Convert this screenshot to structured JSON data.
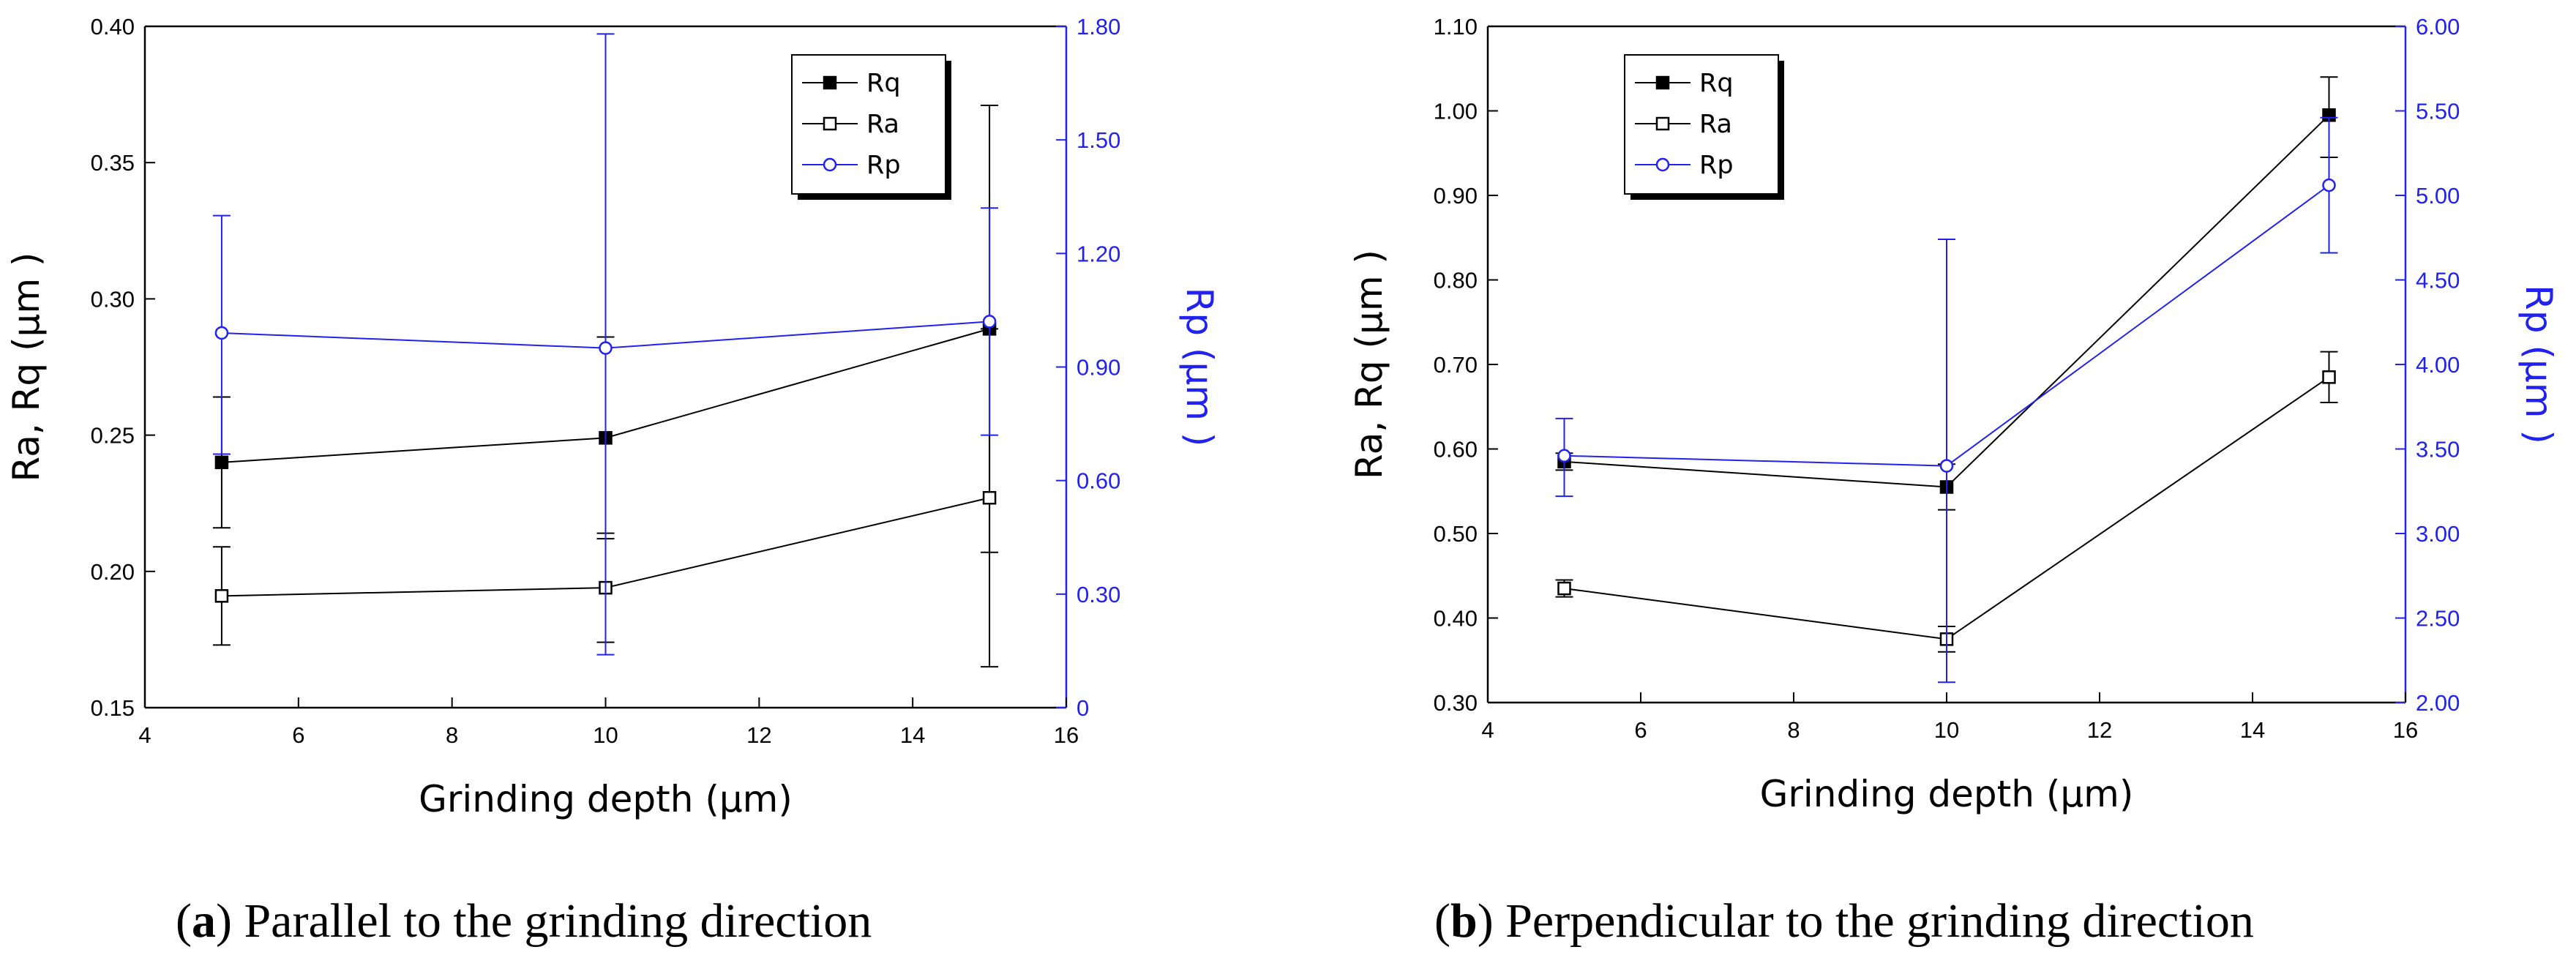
{
  "chart_data": [
    {
      "type": "line",
      "caption": {
        "letter": "a",
        "text": "Parallel to the grinding direction"
      },
      "xlabel": "Grinding depth (µm)",
      "ylabel": "Ra, Rq (µm )",
      "ylabel_right": "Rp (µm )",
      "xlim": [
        4,
        16
      ],
      "xticks": [
        "4",
        "6",
        "8",
        "10",
        "12",
        "14",
        "16"
      ],
      "ylim": [
        0.15,
        0.4
      ],
      "yticks": [
        "0.15",
        "0.20",
        "0.25",
        "0.30",
        "0.35",
        "0.40"
      ],
      "ylim_right": [
        0,
        1.8
      ],
      "yticks_right": [
        "0",
        "0.30",
        "0.60",
        "0.90",
        "1.20",
        "1.50",
        "1.80"
      ],
      "legend_position": "top-right",
      "x": [
        5,
        10,
        15
      ],
      "series": [
        {
          "name": "Rq",
          "axis": "left",
          "color": "#000000",
          "marker": "square-filled",
          "values": [
            0.24,
            0.249,
            0.289
          ],
          "err_low": [
            0.216,
            0.212,
            0.207
          ],
          "err_high": [
            0.264,
            0.286,
            0.371
          ]
        },
        {
          "name": "Ra",
          "axis": "left",
          "color": "#000000",
          "marker": "square-open",
          "values": [
            0.191,
            0.194,
            0.227
          ],
          "err_low": [
            0.173,
            0.174,
            0.165
          ],
          "err_high": [
            0.209,
            0.214,
            0.289
          ]
        },
        {
          "name": "Rp",
          "axis": "right",
          "color": "#2222ee",
          "marker": "circle-open",
          "values": [
            0.99,
            0.95,
            1.02
          ],
          "err_low": [
            0.67,
            0.14,
            0.72
          ],
          "err_high": [
            1.3,
            1.78,
            1.32
          ]
        }
      ]
    },
    {
      "type": "line",
      "caption": {
        "letter": "b",
        "text": "Perpendicular to the grinding direction"
      },
      "xlabel": "Grinding depth (µm)",
      "ylabel": "Ra, Rq (µm )",
      "ylabel_right": "Rp (µm )",
      "xlim": [
        4,
        16
      ],
      "xticks": [
        "4",
        "6",
        "8",
        "10",
        "12",
        "14",
        "16"
      ],
      "ylim": [
        0.3,
        1.1
      ],
      "yticks": [
        "0.30",
        "0.40",
        "0.50",
        "0.60",
        "0.70",
        "0.80",
        "0.90",
        "1.00",
        "1.10"
      ],
      "ylim_right": [
        2,
        6
      ],
      "yticks_right": [
        "2.00",
        "2.50",
        "3.00",
        "3.50",
        "4.00",
        "4.50",
        "5.00",
        "5.50",
        "6.00"
      ],
      "legend_position": "top-left",
      "x": [
        5,
        10,
        15
      ],
      "series": [
        {
          "name": "Rq",
          "axis": "left",
          "color": "#000000",
          "marker": "square-filled",
          "values": [
            0.585,
            0.555,
            0.995
          ],
          "err_low": [
            0.575,
            0.528,
            0.945
          ],
          "err_high": [
            0.595,
            0.582,
            1.04
          ]
        },
        {
          "name": "Ra",
          "axis": "left",
          "color": "#000000",
          "marker": "square-open",
          "values": [
            0.435,
            0.375,
            0.685
          ],
          "err_low": [
            0.425,
            0.36,
            0.655
          ],
          "err_high": [
            0.445,
            0.39,
            0.715
          ]
        },
        {
          "name": "Rp",
          "axis": "right",
          "color": "#2222ee",
          "marker": "circle-open",
          "values": [
            3.46,
            3.4,
            5.06
          ],
          "err_low": [
            3.22,
            2.12,
            4.66
          ],
          "err_high": [
            3.68,
            4.74,
            5.46
          ]
        }
      ]
    }
  ]
}
